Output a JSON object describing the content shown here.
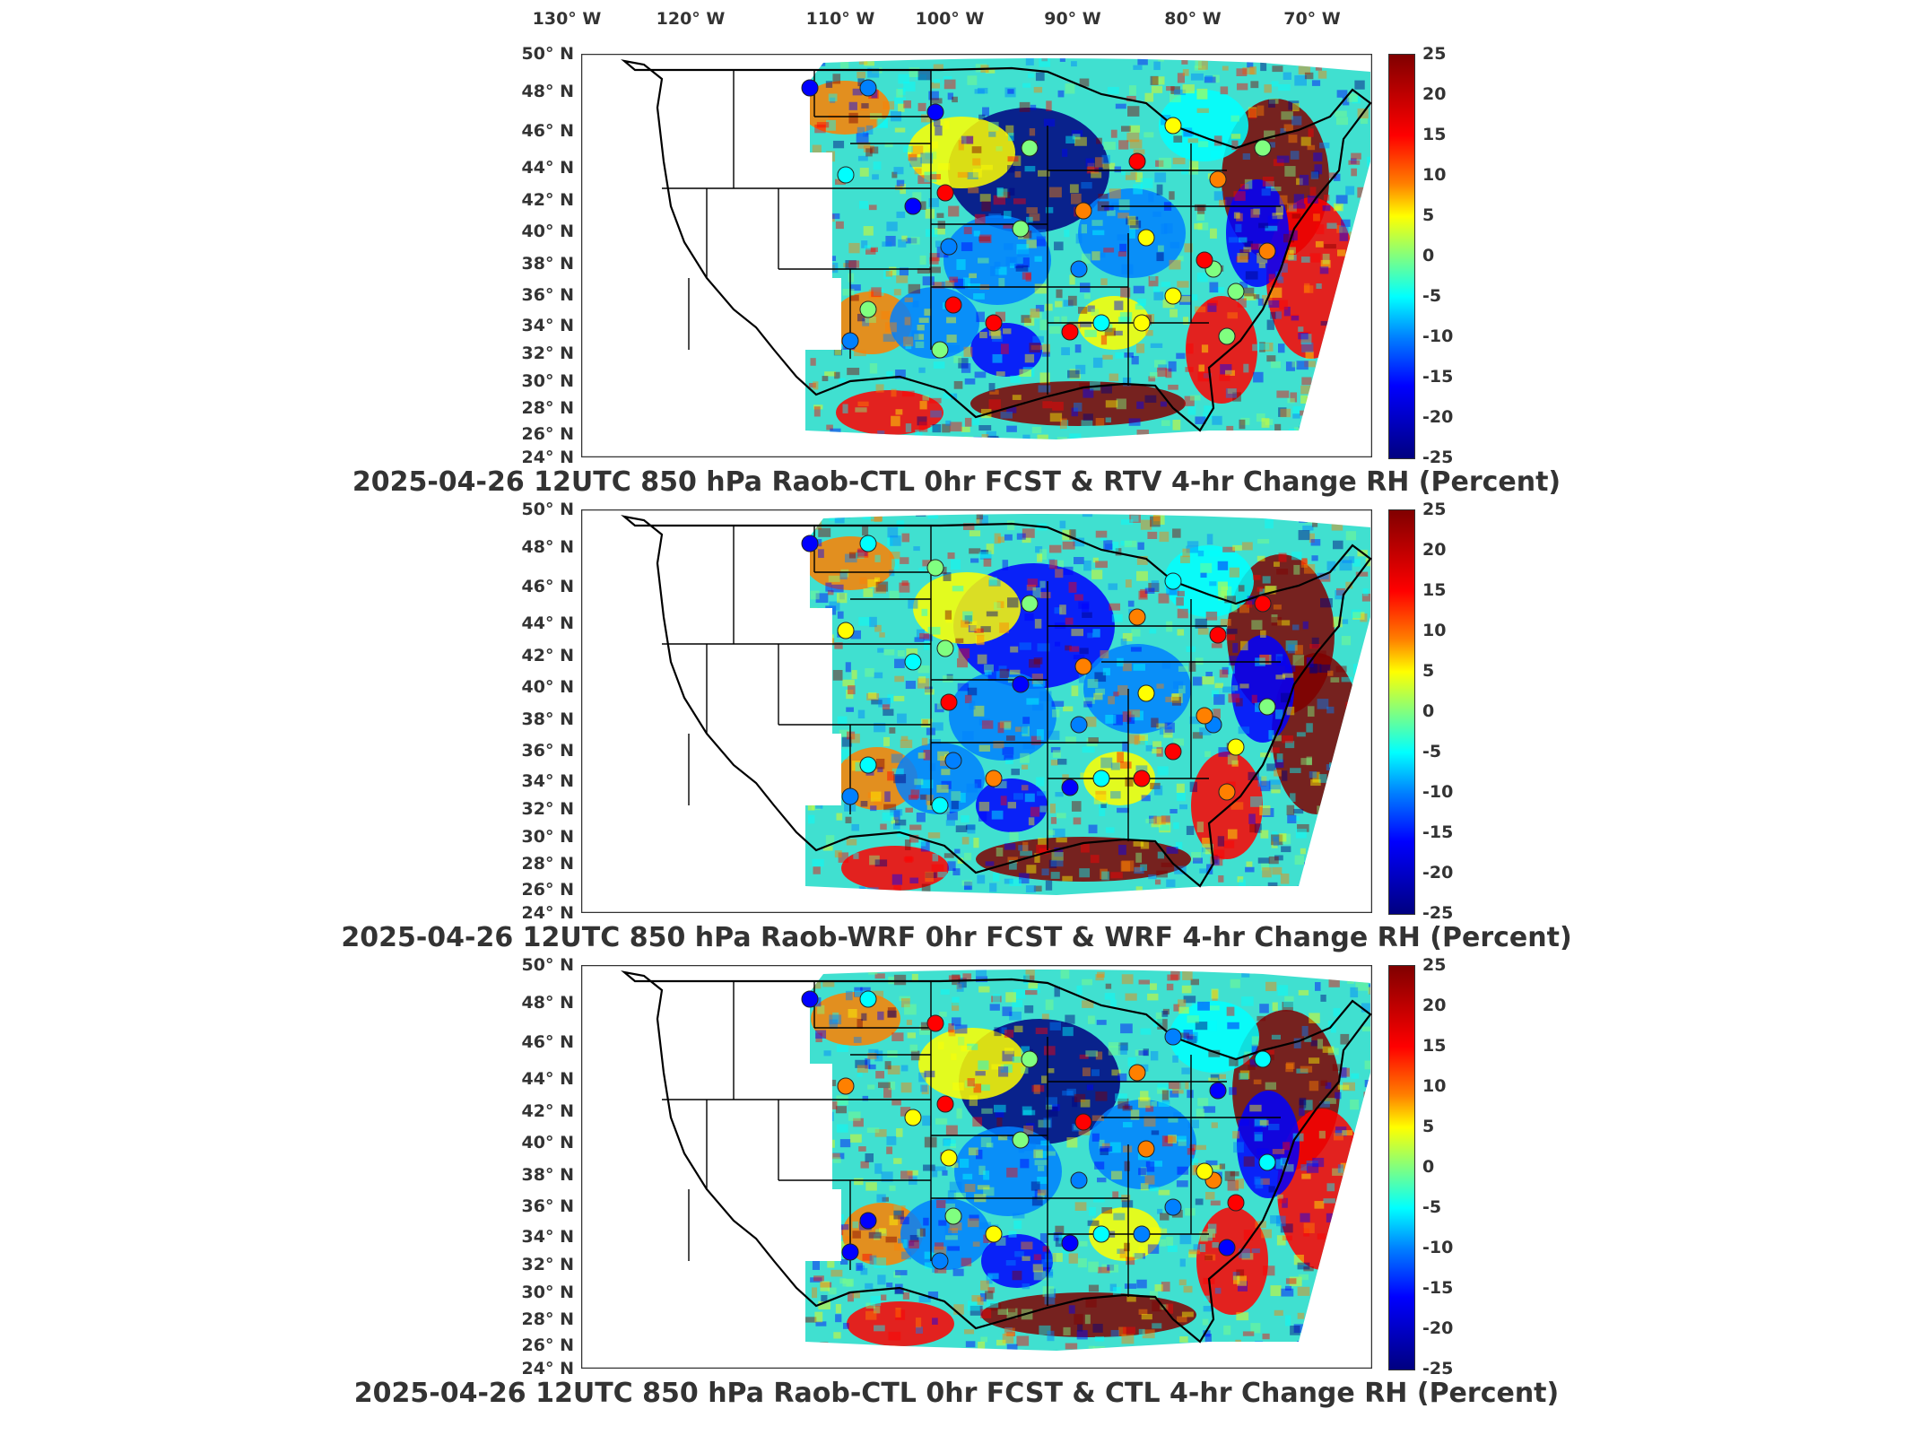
{
  "longitude_labels": [
    "130° W",
    "120° W",
    "110° W",
    "100° W",
    "90° W",
    "80° W",
    "70° W"
  ],
  "latitude_labels": [
    "50° N",
    "48° N",
    "46° N",
    "44° N",
    "42° N",
    "40° N",
    "38° N",
    "36° N",
    "34° N",
    "32° N",
    "30° N",
    "28° N",
    "26° N",
    "24° N"
  ],
  "colorbar": {
    "ticks": [
      "25",
      "20",
      "15",
      "10",
      "5",
      "0",
      "-5",
      "-10",
      "-15",
      "-20",
      "-25"
    ],
    "min": -25,
    "max": 25,
    "colors": [
      "#800000",
      "#ff0000",
      "#ff8000",
      "#ffff00",
      "#80ff80",
      "#00ffff",
      "#0080ff",
      "#0000ff",
      "#000080"
    ]
  },
  "panels": [
    {
      "title": "2025-04-26 12UTC 850 hPa Raob-CTL 0hr FCST & RTV 4-hr Change RH (Percent)"
    },
    {
      "title": "2025-04-26 12UTC 850 hPa Raob-WRF 0hr FCST & WRF 4-hr Change RH (Percent)"
    },
    {
      "title": "2025-04-26 12UTC 850 hPa Raob-CTL 0hr FCST & CTL 4-hr Change RH (Percent)"
    }
  ]
}
